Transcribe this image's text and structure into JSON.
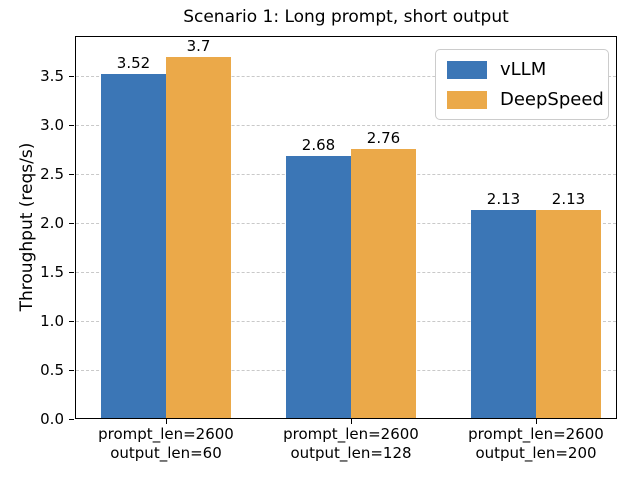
{
  "chart_data": {
    "type": "bar",
    "title": "Scenario 1: Long prompt, short output",
    "xlabel": "",
    "ylabel": "Throughput (reqs/s)",
    "categories": [
      "prompt_len=2600\noutput_len=60",
      "prompt_len=2600\noutput_len=128",
      "prompt_len=2600\noutput_len=200"
    ],
    "series": [
      {
        "name": "vLLM",
        "color": "#3B76B6",
        "values": [
          3.52,
          2.68,
          2.13
        ],
        "value_labels": [
          "3.52",
          "2.68",
          "2.13"
        ]
      },
      {
        "name": "DeepSpeed",
        "color": "#EBA949",
        "values": [
          3.7,
          2.76,
          2.13
        ],
        "value_labels": [
          "3.7",
          "2.76",
          "2.13"
        ]
      }
    ],
    "yticks": [
      0.0,
      0.5,
      1.0,
      1.5,
      2.0,
      2.5,
      3.0,
      3.5
    ],
    "ytick_labels": [
      "0.0",
      "0.5",
      "1.0",
      "1.5",
      "2.0",
      "2.5",
      "3.0",
      "3.5"
    ],
    "ylim": [
      0,
      3.91
    ],
    "grid": "horizontal dashed",
    "legend_position": "upper right"
  }
}
